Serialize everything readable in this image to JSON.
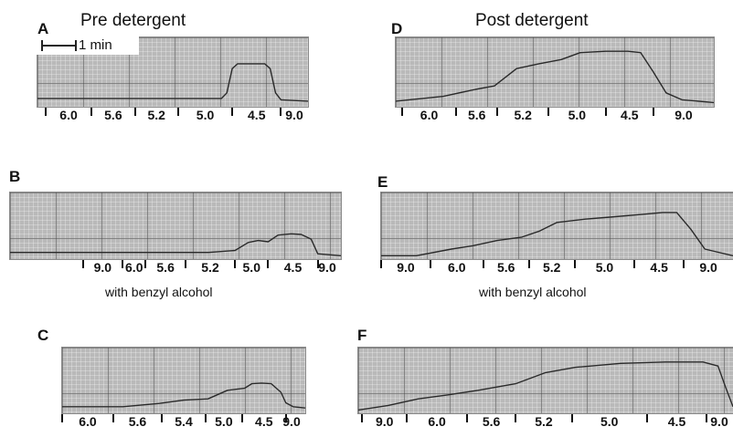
{
  "headers": {
    "pre": "Pre detergent",
    "post": "Post detergent"
  },
  "scalebar_label": "1 min",
  "notes": {
    "b": "with benzyl alcohol",
    "e": "with benzyl alcohol"
  },
  "colors": {
    "paper": "#b9b9b9",
    "trace": "#2a2a2a"
  },
  "chart_data": [
    {
      "panel": "A",
      "type": "line",
      "segment_labels": [
        "6.0",
        "5.6",
        "5.2",
        "5.0",
        "4.5",
        "9.0"
      ],
      "trace": {
        "x": [
          0,
          0.68,
          0.7,
          0.72,
          0.74,
          0.84,
          0.86,
          0.88,
          0.9,
          1.0
        ],
        "y": [
          0.12,
          0.12,
          0.2,
          0.55,
          0.62,
          0.62,
          0.55,
          0.2,
          0.1,
          0.08
        ]
      }
    },
    {
      "panel": "B",
      "type": "line",
      "segment_labels": [
        "9.0",
        "6.0",
        "5.6",
        "5.2",
        "5.0",
        "4.5",
        "9.0"
      ],
      "trace": {
        "x": [
          0,
          0.6,
          0.68,
          0.72,
          0.75,
          0.78,
          0.81,
          0.85,
          0.88,
          0.91,
          0.93,
          1.0
        ],
        "y": [
          0.1,
          0.1,
          0.13,
          0.25,
          0.28,
          0.26,
          0.36,
          0.38,
          0.37,
          0.3,
          0.08,
          0.05
        ]
      }
    },
    {
      "panel": "C",
      "type": "line",
      "segment_labels": [
        "6.0",
        "5.6",
        "5.4",
        "5.0",
        "4.5",
        "9.0"
      ],
      "trace": {
        "x": [
          0,
          0.25,
          0.4,
          0.5,
          0.6,
          0.68,
          0.75,
          0.78,
          0.82,
          0.86,
          0.9,
          0.92,
          0.95,
          1.0
        ],
        "y": [
          0.1,
          0.1,
          0.15,
          0.2,
          0.22,
          0.35,
          0.38,
          0.45,
          0.46,
          0.45,
          0.32,
          0.16,
          0.1,
          0.08
        ]
      }
    },
    {
      "panel": "D",
      "type": "line",
      "segment_labels": [
        "6.0",
        "5.6",
        "5.2",
        "5.0",
        "4.5",
        "9.0"
      ],
      "trace": {
        "x": [
          0,
          0.15,
          0.25,
          0.31,
          0.38,
          0.45,
          0.52,
          0.58,
          0.66,
          0.73,
          0.77,
          0.81,
          0.85,
          0.9,
          1.0
        ],
        "y": [
          0.08,
          0.15,
          0.25,
          0.3,
          0.55,
          0.62,
          0.68,
          0.78,
          0.8,
          0.8,
          0.78,
          0.5,
          0.2,
          0.1,
          0.06
        ]
      }
    },
    {
      "panel": "E",
      "type": "line",
      "segment_labels": [
        "9.0",
        "6.0",
        "5.6",
        "5.2",
        "5.0",
        "4.5",
        "9.0"
      ],
      "trace": {
        "x": [
          0,
          0.1,
          0.2,
          0.26,
          0.33,
          0.4,
          0.45,
          0.5,
          0.58,
          0.65,
          0.74,
          0.8,
          0.84,
          0.88,
          0.92,
          1.0
        ],
        "y": [
          0.05,
          0.05,
          0.15,
          0.2,
          0.28,
          0.33,
          0.42,
          0.55,
          0.6,
          0.63,
          0.67,
          0.7,
          0.7,
          0.45,
          0.15,
          0.05
        ]
      }
    },
    {
      "panel": "F",
      "type": "line",
      "segment_labels": [
        "9.0",
        "6.0",
        "5.6",
        "5.2",
        "5.0",
        "4.5",
        "9.0"
      ],
      "trace": {
        "x": [
          0,
          0.08,
          0.16,
          0.24,
          0.32,
          0.42,
          0.5,
          0.58,
          0.7,
          0.82,
          0.92,
          0.96,
          0.98,
          1.0
        ],
        "y": [
          0.05,
          0.12,
          0.22,
          0.28,
          0.35,
          0.45,
          0.62,
          0.7,
          0.76,
          0.78,
          0.78,
          0.72,
          0.4,
          0.1
        ]
      }
    }
  ]
}
